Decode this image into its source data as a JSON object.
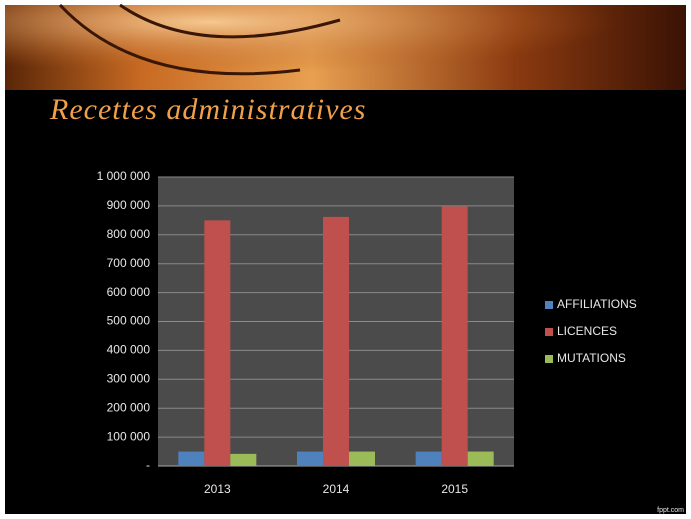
{
  "chart_data": {
    "type": "bar",
    "title": "Recettes administratives",
    "categories": [
      "2013",
      "2014",
      "2015"
    ],
    "series": [
      {
        "name": "AFFILIATIONS",
        "color": "#4f81bd",
        "values": [
          50000,
          50000,
          50000
        ]
      },
      {
        "name": "LICENCES",
        "color": "#c0504d",
        "values": [
          850000,
          862000,
          898000
        ]
      },
      {
        "name": "MUTATIONS",
        "color": "#9bbb59",
        "values": [
          42000,
          50000,
          50000
        ]
      }
    ],
    "ylim": [
      0,
      1000000
    ],
    "yticks": [
      {
        "value": 0,
        "label": "-"
      },
      {
        "value": 100000,
        "label": "100 000"
      },
      {
        "value": 200000,
        "label": "200 000"
      },
      {
        "value": 300000,
        "label": "300 000"
      },
      {
        "value": 400000,
        "label": "400 000"
      },
      {
        "value": 500000,
        "label": "500 000"
      },
      {
        "value": 600000,
        "label": "600 000"
      },
      {
        "value": 700000,
        "label": "700 000"
      },
      {
        "value": 800000,
        "label": "800 000"
      },
      {
        "value": 900000,
        "label": "900 000"
      },
      {
        "value": 1000000,
        "label": "1 000 000"
      }
    ],
    "grid": true,
    "legend": "right",
    "watermark": "fppt.com"
  }
}
